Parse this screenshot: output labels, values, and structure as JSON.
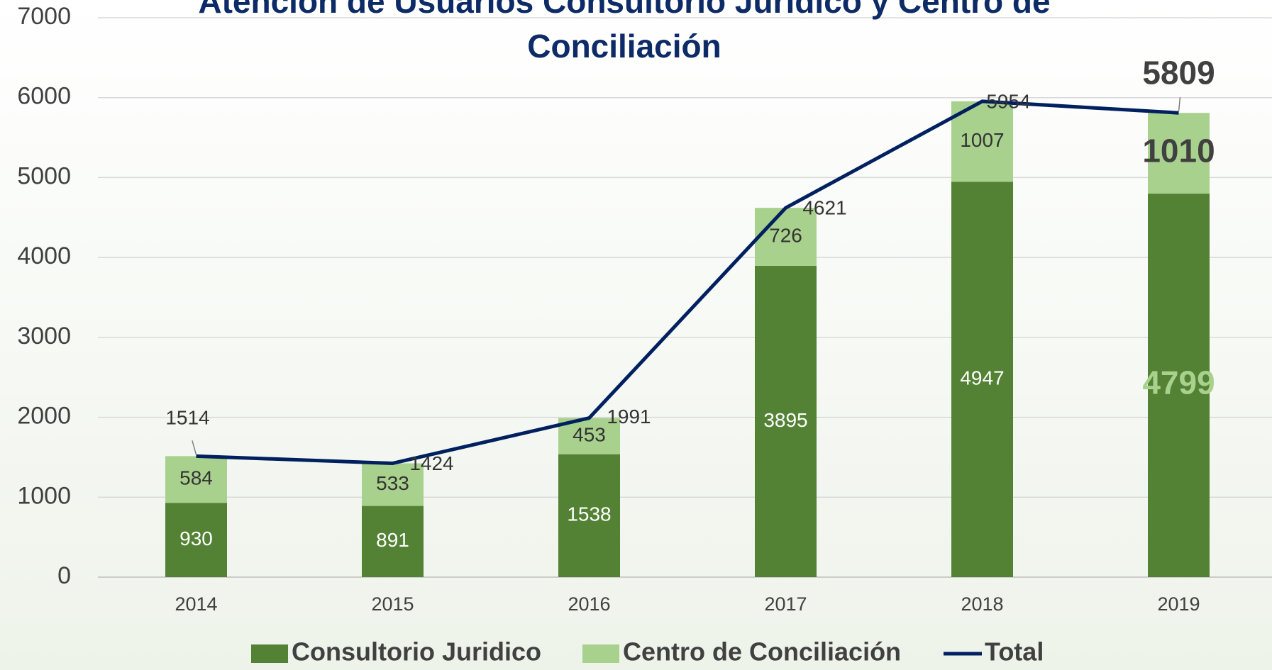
{
  "chart_data": {
    "type": "bar",
    "stacked": true,
    "title": "Atención de Usuarios Consultorio Jurídico y Centro de Conciliación",
    "categories": [
      "2014",
      "2015",
      "2016",
      "2017",
      "2018",
      "2019"
    ],
    "series": [
      {
        "name": "Consultorio Juridico",
        "color": "#548235",
        "values": [
          930,
          891,
          1538,
          3895,
          4947,
          4799
        ]
      },
      {
        "name": "Centro de Conciliación",
        "color": "#a9d18e",
        "values": [
          584,
          533,
          453,
          726,
          1007,
          1010
        ]
      },
      {
        "name": "Total",
        "type": "line",
        "color": "#002060",
        "values": [
          1514,
          1424,
          1991,
          4621,
          5954,
          5809
        ]
      }
    ],
    "ylim": [
      0,
      7000
    ],
    "yticks": [
      0,
      1000,
      2000,
      3000,
      4000,
      5000,
      6000,
      7000
    ],
    "grid": true,
    "legend": "bottom"
  }
}
